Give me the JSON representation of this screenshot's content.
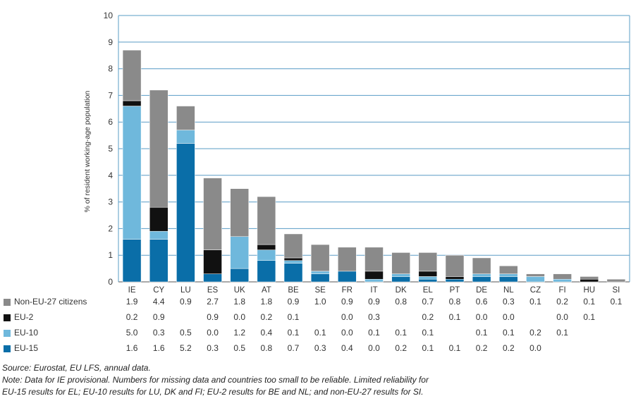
{
  "chart_data": {
    "type": "bar",
    "stacked": true,
    "ylabel": "% of resident working-age population",
    "ylim": [
      0,
      10
    ],
    "yticks": [
      0,
      1,
      2,
      3,
      4,
      5,
      6,
      7,
      8,
      9,
      10
    ],
    "grid": true,
    "categories": [
      "IE",
      "CY",
      "LU",
      "ES",
      "UK",
      "AT",
      "BE",
      "SE",
      "FR",
      "IT",
      "DK",
      "EL",
      "PT",
      "DE",
      "NL",
      "CZ",
      "FI",
      "HU",
      "SI"
    ],
    "series": [
      {
        "name": "EU-15",
        "color": "#0a6ea8",
        "values": [
          1.6,
          1.6,
          5.2,
          0.3,
          0.5,
          0.8,
          0.7,
          0.3,
          0.4,
          0.0,
          0.2,
          0.1,
          0.1,
          0.2,
          0.2,
          0.0,
          null,
          null,
          null
        ],
        "labels": [
          "1.6",
          "1.6",
          "5.2",
          "0.3",
          "0.5",
          "0.8",
          "0.7",
          "0.3",
          "0.4",
          "0.0",
          "0.2",
          "0.1",
          "0.1",
          "0.2",
          "0.2",
          "0.0",
          "",
          "",
          ""
        ]
      },
      {
        "name": "EU-10",
        "color": "#6fb8dc",
        "values": [
          5.0,
          0.3,
          0.5,
          0.0,
          1.2,
          0.4,
          0.1,
          0.1,
          0.0,
          0.1,
          0.1,
          0.1,
          null,
          0.1,
          0.1,
          0.2,
          0.1,
          null,
          null
        ],
        "labels": [
          "5.0",
          "0.3",
          "0.5",
          "0.0",
          "1.2",
          "0.4",
          "0.1",
          "0.1",
          "0.0",
          "0.1",
          "0.1",
          "0.1",
          "",
          "0.1",
          "0.1",
          "0.2",
          "0.1",
          "",
          ""
        ]
      },
      {
        "name": "EU-2",
        "color": "#111111",
        "values": [
          0.2,
          0.9,
          null,
          0.9,
          0.0,
          0.2,
          0.1,
          null,
          0.0,
          0.3,
          null,
          0.2,
          0.1,
          0.0,
          0.0,
          null,
          0.0,
          0.1,
          null
        ],
        "labels": [
          "0.2",
          "0.9",
          "",
          "0.9",
          "0.0",
          "0.2",
          "0.1",
          "",
          "0.0",
          "0.3",
          "",
          "0.2",
          "0.1",
          "0.0",
          "0.0",
          "",
          "0.0",
          "0.1",
          ""
        ]
      },
      {
        "name": "Non-EU-27 citizens",
        "color": "#8a8a8a",
        "values": [
          1.9,
          4.4,
          0.9,
          2.7,
          1.8,
          1.8,
          0.9,
          1.0,
          0.9,
          0.9,
          0.8,
          0.7,
          0.8,
          0.6,
          0.3,
          0.1,
          0.2,
          0.1,
          0.1
        ],
        "labels": [
          "1.9",
          "4.4",
          "0.9",
          "2.7",
          "1.8",
          "1.8",
          "0.9",
          "1.0",
          "0.9",
          "0.9",
          "0.8",
          "0.7",
          "0.8",
          "0.6",
          "0.3",
          "0.1",
          "0.2",
          "0.1",
          "0.1"
        ]
      }
    ]
  },
  "notes": {
    "source": "Source: Eurostat, EU LFS, annual data.",
    "note_line1": "Note: Data for IE provisional. Numbers for missing data and countries too small to be reliable. Limited reliability for",
    "note_line2": "EU-15 results for EL; EU-10 results for LU, DK and FI; EU-2 results for BE and NL; and non-EU-27 results for SI."
  }
}
